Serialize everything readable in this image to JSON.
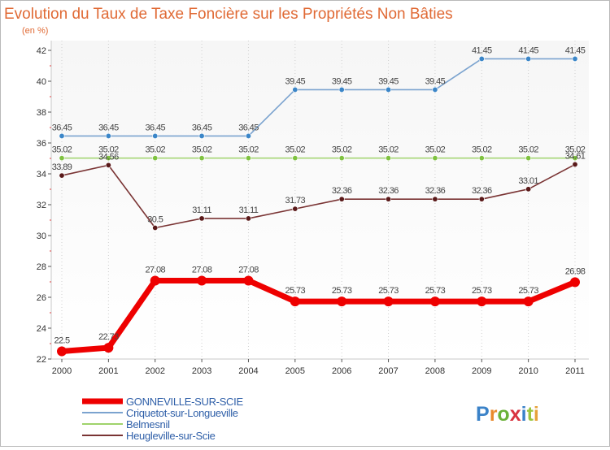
{
  "chart_data": {
    "type": "line",
    "title": "Evolution du Taux de Taxe Foncière sur les Propriétés Non Bâties",
    "subtitle": "(en %)",
    "xlabel": "",
    "ylabel": "",
    "ylim": [
      22,
      42
    ],
    "yticks": [
      22,
      24,
      26,
      28,
      30,
      32,
      34,
      36,
      38,
      40,
      42
    ],
    "categories": [
      "2000",
      "2001",
      "2002",
      "2003",
      "2004",
      "2005",
      "2006",
      "2007",
      "2008",
      "2009",
      "2010",
      "2011"
    ],
    "series": [
      {
        "name": "Criquetot-sur-Longueville",
        "color": "#7ba3cf",
        "marker_color": "#3b86c8",
        "values": [
          36.45,
          36.45,
          36.45,
          36.45,
          36.45,
          39.45,
          39.45,
          39.45,
          39.45,
          41.45,
          41.45,
          41.45
        ],
        "labels": [
          "36.45",
          "36.45",
          "36.45",
          "36.45",
          "36.45",
          "39.45",
          "39.45",
          "39.45",
          "39.45",
          "41.45",
          "41.45",
          "41.45"
        ]
      },
      {
        "name": "Belmesnil",
        "color": "#9fd36b",
        "marker_color": "#7fc240",
        "values": [
          35.02,
          35.02,
          35.02,
          35.02,
          35.02,
          35.02,
          35.02,
          35.02,
          35.02,
          35.02,
          35.02,
          35.02
        ],
        "labels": [
          "35.02",
          "35.02",
          "35.02",
          "35.02",
          "35.02",
          "35.02",
          "35.02",
          "35.02",
          "35.02",
          "35.02",
          "35.02",
          "35.02"
        ]
      },
      {
        "name": "Heugleville-sur-Scie",
        "color": "#7a3434",
        "marker_color": "#5a1a1a",
        "values": [
          33.89,
          34.56,
          30.5,
          31.11,
          31.11,
          31.73,
          32.36,
          32.36,
          32.36,
          32.36,
          33.01,
          34.61
        ],
        "labels": [
          "33.89",
          "34.56",
          "30.5",
          "31.11",
          "31.11",
          "31.73",
          "32.36",
          "32.36",
          "32.36",
          "32.36",
          "33.01",
          "34.61"
        ]
      },
      {
        "name": "GONNEVILLE-SUR-SCIE",
        "color": "#ee0000",
        "marker_color": "#ee0000",
        "values": [
          22.5,
          22.73,
          27.08,
          27.08,
          27.08,
          25.73,
          25.73,
          25.73,
          25.73,
          25.73,
          25.73,
          26.98
        ],
        "labels": [
          "22.5",
          "22.73",
          "27.08",
          "27.08",
          "27.08",
          "25.73",
          "25.73",
          "25.73",
          "25.73",
          "25.73",
          "25.73",
          "26.98"
        ]
      }
    ],
    "legend": {
      "placement": "bottom-left",
      "order": [
        "GONNEVILLE-SUR-SCIE",
        "Criquetot-sur-Longueville",
        "Belmesnil",
        "Heugleville-sur-Scie"
      ]
    }
  },
  "logo": {
    "text": "Proxiti"
  }
}
